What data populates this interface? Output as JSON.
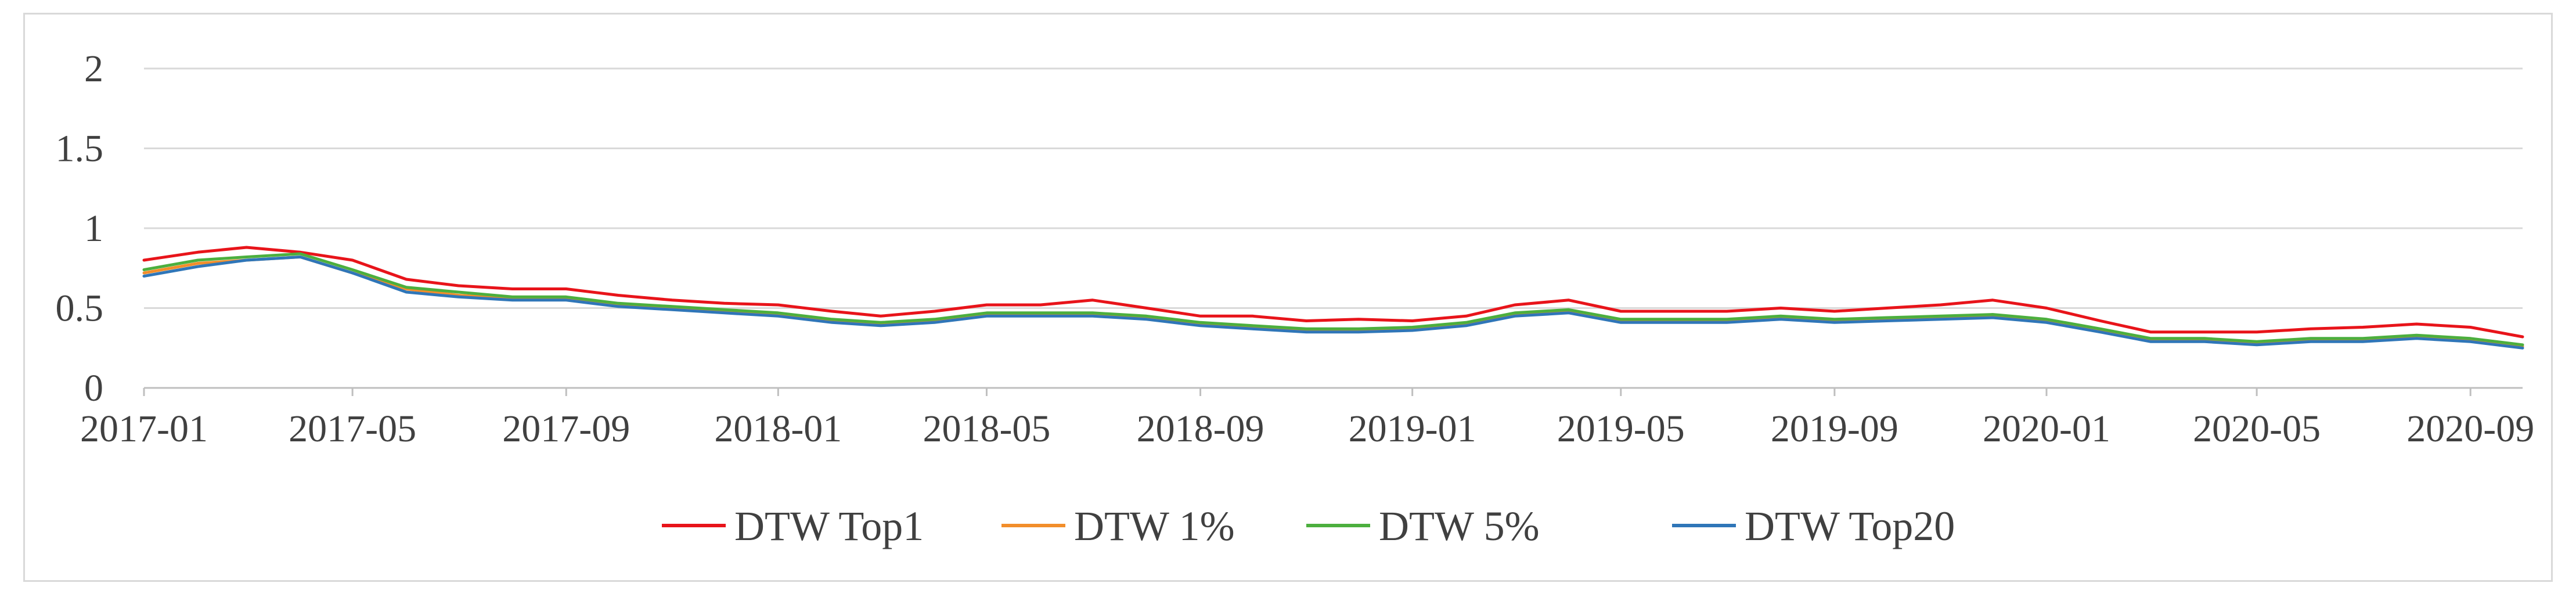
{
  "chart_data": {
    "type": "line",
    "title": "",
    "xlabel": "",
    "ylabel": "",
    "ylim": [
      0,
      2
    ],
    "y_ticks": [
      "0",
      "0.5",
      "1",
      "1.5",
      "2"
    ],
    "x_ticks": [
      "2017-01",
      "2017-05",
      "2017-09",
      "2018-01",
      "2018-05",
      "2018-09",
      "2019-01",
      "2019-05",
      "2019-09",
      "2020-01",
      "2020-05",
      "2020-09"
    ],
    "x_range": [
      "2017-01",
      "2020-10"
    ],
    "grid": "horizontal",
    "legend_position": "bottom",
    "x": [
      "2017-01",
      "2017-02",
      "2017-03",
      "2017-04",
      "2017-05",
      "2017-06",
      "2017-07",
      "2017-08",
      "2017-09",
      "2017-10",
      "2017-11",
      "2017-12",
      "2018-01",
      "2018-02",
      "2018-03",
      "2018-04",
      "2018-05",
      "2018-06",
      "2018-07",
      "2018-08",
      "2018-09",
      "2018-10",
      "2018-11",
      "2018-12",
      "2019-01",
      "2019-02",
      "2019-03",
      "2019-04",
      "2019-05",
      "2019-06",
      "2019-07",
      "2019-08",
      "2019-09",
      "2019-10",
      "2019-11",
      "2019-12",
      "2020-01",
      "2020-02",
      "2020-03",
      "2020-04",
      "2020-05",
      "2020-06",
      "2020-07",
      "2020-08",
      "2020-09",
      "2020-10"
    ],
    "series": [
      {
        "name": "DTW Top1",
        "color": "#e8141a",
        "values": [
          0.8,
          0.85,
          0.88,
          0.85,
          0.8,
          0.68,
          0.64,
          0.62,
          0.62,
          0.58,
          0.55,
          0.53,
          0.52,
          0.48,
          0.45,
          0.48,
          0.52,
          0.52,
          0.55,
          0.5,
          0.45,
          0.45,
          0.42,
          0.43,
          0.42,
          0.45,
          0.52,
          0.55,
          0.48,
          0.48,
          0.48,
          0.5,
          0.48,
          0.5,
          0.52,
          0.55,
          0.5,
          0.42,
          0.35,
          0.35,
          0.35,
          0.37,
          0.38,
          0.4,
          0.38,
          0.32
        ]
      },
      {
        "name": "DTW 1%",
        "color": "#f28e2b",
        "values": [
          0.72,
          0.78,
          0.8,
          0.82,
          0.72,
          0.62,
          0.58,
          0.56,
          0.56,
          0.52,
          0.5,
          0.48,
          0.46,
          0.42,
          0.4,
          0.42,
          0.46,
          0.46,
          0.46,
          0.44,
          0.4,
          0.38,
          0.36,
          0.36,
          0.37,
          0.4,
          0.46,
          0.48,
          0.42,
          0.42,
          0.42,
          0.44,
          0.42,
          0.43,
          0.44,
          0.45,
          0.42,
          0.36,
          0.3,
          0.3,
          0.28,
          0.3,
          0.3,
          0.32,
          0.3,
          0.26
        ]
      },
      {
        "name": "DTW 5%",
        "color": "#4caf3e",
        "values": [
          0.74,
          0.8,
          0.82,
          0.84,
          0.74,
          0.63,
          0.6,
          0.57,
          0.57,
          0.53,
          0.51,
          0.49,
          0.47,
          0.43,
          0.41,
          0.43,
          0.47,
          0.47,
          0.47,
          0.45,
          0.41,
          0.39,
          0.37,
          0.37,
          0.38,
          0.41,
          0.47,
          0.49,
          0.43,
          0.43,
          0.43,
          0.45,
          0.43,
          0.44,
          0.45,
          0.46,
          0.43,
          0.37,
          0.31,
          0.31,
          0.29,
          0.31,
          0.31,
          0.33,
          0.31,
          0.27
        ]
      },
      {
        "name": "DTW Top20",
        "color": "#2f76b8",
        "values": [
          0.7,
          0.76,
          0.8,
          0.82,
          0.72,
          0.6,
          0.57,
          0.55,
          0.55,
          0.51,
          0.49,
          0.47,
          0.45,
          0.41,
          0.39,
          0.41,
          0.45,
          0.45,
          0.45,
          0.43,
          0.39,
          0.37,
          0.35,
          0.35,
          0.36,
          0.39,
          0.45,
          0.47,
          0.41,
          0.41,
          0.41,
          0.43,
          0.41,
          0.42,
          0.43,
          0.44,
          0.41,
          0.35,
          0.29,
          0.29,
          0.27,
          0.29,
          0.29,
          0.31,
          0.29,
          0.25
        ]
      }
    ]
  }
}
